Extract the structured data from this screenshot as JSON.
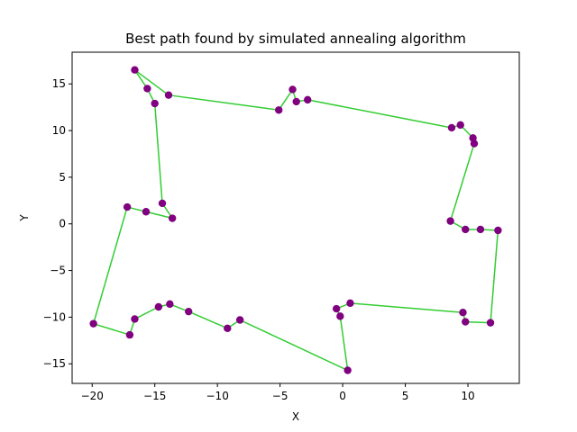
{
  "chart_data": {
    "type": "scatter",
    "title": "Best path found by simulated annealing algorithm",
    "xlabel": "X",
    "ylabel": "Y",
    "xlim": [
      -21.6,
      14.1
    ],
    "ylim": [
      -17.1,
      18.4
    ],
    "xticks": [
      -20,
      -15,
      -10,
      -5,
      0,
      5,
      10
    ],
    "yticks": [
      -15,
      -10,
      -5,
      0,
      5,
      10,
      15
    ],
    "grid": false,
    "colors": {
      "path": "#32cd32",
      "points": "#800080"
    },
    "path": [
      [
        -16.6,
        16.5
      ],
      [
        -15.6,
        14.5
      ],
      [
        -15.0,
        12.9
      ],
      [
        -14.4,
        2.2
      ],
      [
        -13.6,
        0.6
      ],
      [
        -15.7,
        1.3
      ],
      [
        -17.2,
        1.8
      ],
      [
        -19.9,
        -10.7
      ],
      [
        -17.0,
        -11.9
      ],
      [
        -16.6,
        -10.2
      ],
      [
        -14.7,
        -8.9
      ],
      [
        -13.8,
        -8.6
      ],
      [
        -12.3,
        -9.4
      ],
      [
        -9.2,
        -11.2
      ],
      [
        -8.2,
        -10.3
      ],
      [
        0.4,
        -15.7
      ],
      [
        -0.2,
        -9.9
      ],
      [
        -0.5,
        -9.1
      ],
      [
        0.6,
        -8.5
      ],
      [
        9.6,
        -9.5
      ],
      [
        9.8,
        -10.5
      ],
      [
        11.8,
        -10.6
      ],
      [
        12.4,
        -0.7
      ],
      [
        11.0,
        -0.6
      ],
      [
        9.8,
        -0.6
      ],
      [
        8.6,
        0.3
      ],
      [
        10.5,
        8.6
      ],
      [
        10.4,
        9.2
      ],
      [
        9.4,
        10.6
      ],
      [
        8.7,
        10.3
      ],
      [
        -2.8,
        13.3
      ],
      [
        -3.7,
        13.1
      ],
      [
        -4.0,
        14.4
      ],
      [
        -5.1,
        12.2
      ],
      [
        -13.9,
        13.8
      ],
      [
        -16.6,
        16.5
      ]
    ]
  }
}
